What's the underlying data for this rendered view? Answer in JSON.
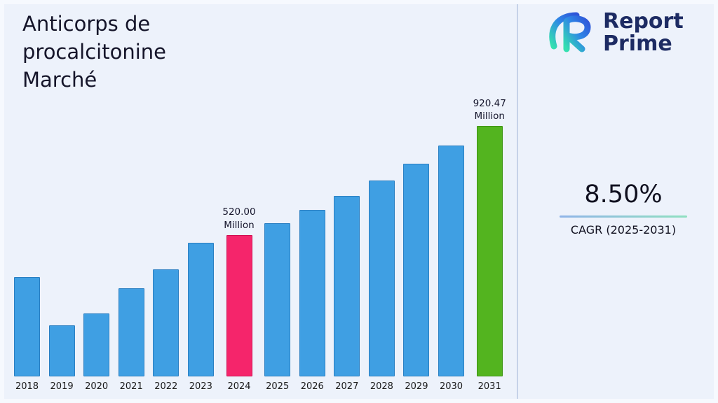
{
  "page": {
    "title_lines": [
      "Anticorps de",
      "procalcitonine",
      "Marché"
    ]
  },
  "brand": {
    "name_line1": "Report",
    "name_line2": "Prime",
    "logo_colors": {
      "teal": "#35e0b0",
      "blue": "#2e86e6",
      "navy": "#1d2b63"
    }
  },
  "stats": {
    "cagr_value": "8.50%",
    "cagr_label": "CAGR (2025-2031)"
  },
  "chart_data": {
    "type": "bar",
    "title": "Anticorps de procalcitonine Marché",
    "unit": "Million",
    "categories": [
      "2018",
      "2019",
      "2020",
      "2021",
      "2022",
      "2023",
      "2024",
      "2025",
      "2026",
      "2027",
      "2028",
      "2029",
      "2030",
      "2031"
    ],
    "values": [
      364,
      188,
      231,
      325,
      394,
      492,
      520.0,
      564.2,
      612.16,
      664.19,
      720.65,
      781.9,
      848.37,
      920.47
    ],
    "annotations": {
      "2024": "520.00\nMillion",
      "2031": "920.47\nMillion"
    },
    "colors": {
      "default": "#3f9fe3",
      "default_border": "#2a7fc2",
      "2024": "#f5256b",
      "2024_border": "#cf0f52",
      "2031": "#53b41f",
      "2031_border": "#3d9413"
    },
    "ylim": [
      0,
      920.47
    ],
    "grid": false,
    "legend": "none",
    "xlabel": "",
    "ylabel": ""
  }
}
